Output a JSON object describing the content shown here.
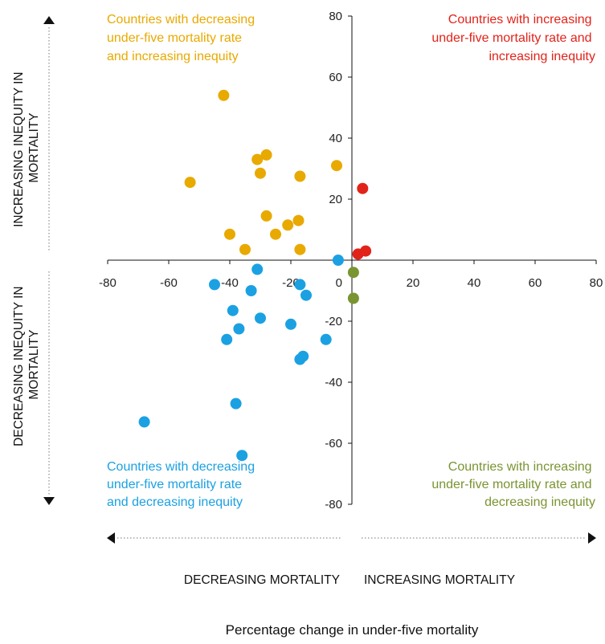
{
  "chart_data": {
    "type": "scatter",
    "title": "",
    "xlabel": "Percentage change in under-five mortality",
    "ylabel": "",
    "xlim": [
      -80,
      80
    ],
    "ylim": [
      -80,
      80
    ],
    "x_ticks": [
      "-80",
      "-60",
      "-40",
      "-20",
      "20",
      "40",
      "60",
      "80"
    ],
    "y_ticks": [
      "80",
      "60",
      "40",
      "20",
      "0",
      "-20",
      "-40",
      "-60",
      "-80"
    ],
    "colors": {
      "decreasing_increasing": "#e8a900",
      "increasing_increasing": "#e2231a",
      "decreasing_decreasing": "#1ba1e2",
      "increasing_decreasing": "#7a9432"
    },
    "quadrant_labels": {
      "top_left": [
        "Countries with decreasing",
        "under-five mortality rate",
        "and increasing inequity"
      ],
      "top_right": [
        "Countries with increasing",
        "under-five mortality rate and",
        "increasing inequity"
      ],
      "bottom_left": [
        "Countries with decreasing",
        "under-five mortality rate",
        "and decreasing inequity"
      ],
      "bottom_right": [
        "Countries with increasing",
        "under-five mortality rate and",
        "decreasing inequity"
      ]
    },
    "side_labels": {
      "y_up": [
        "INCREASING INEQUITY IN",
        "MORTALITY"
      ],
      "y_down": [
        "DECREASING INEQUITY IN",
        "MORTALITY"
      ],
      "x_left": "DECREASING MORTALITY",
      "x_right": "INCREASING MORTALITY"
    },
    "series": [
      {
        "group": "decreasing_increasing",
        "points": [
          [
            -42,
            54
          ],
          [
            -53,
            25.5
          ],
          [
            -31,
            33
          ],
          [
            -28,
            34.5
          ],
          [
            -30,
            28.5
          ],
          [
            -17,
            27.5
          ],
          [
            -5,
            31
          ],
          [
            -28,
            14.5
          ],
          [
            -21,
            11.5
          ],
          [
            -17.5,
            13
          ],
          [
            -40,
            8.5
          ],
          [
            -25,
            8.5
          ],
          [
            -35,
            3.5
          ],
          [
            -17,
            3.5
          ]
        ]
      },
      {
        "group": "increasing_increasing",
        "points": [
          [
            3.5,
            23.5
          ],
          [
            2,
            2
          ],
          [
            4.5,
            3
          ]
        ]
      },
      {
        "group": "decreasing_decreasing",
        "points": [
          [
            -4.5,
            0
          ],
          [
            -31,
            -3
          ],
          [
            -45,
            -8
          ],
          [
            -33,
            -10
          ],
          [
            -17,
            -8
          ],
          [
            -15,
            -11.5
          ],
          [
            -39,
            -16.5
          ],
          [
            -37,
            -22.5
          ],
          [
            -30,
            -19
          ],
          [
            -20,
            -21
          ],
          [
            -41,
            -26
          ],
          [
            -8.5,
            -26
          ],
          [
            -16,
            -31.5
          ],
          [
            -17,
            -32.5
          ],
          [
            -38,
            -47
          ],
          [
            -68,
            -53
          ],
          [
            -36,
            -64
          ]
        ]
      },
      {
        "group": "increasing_decreasing",
        "points": [
          [
            0.5,
            -4
          ],
          [
            0.5,
            -12.5
          ]
        ]
      }
    ]
  }
}
